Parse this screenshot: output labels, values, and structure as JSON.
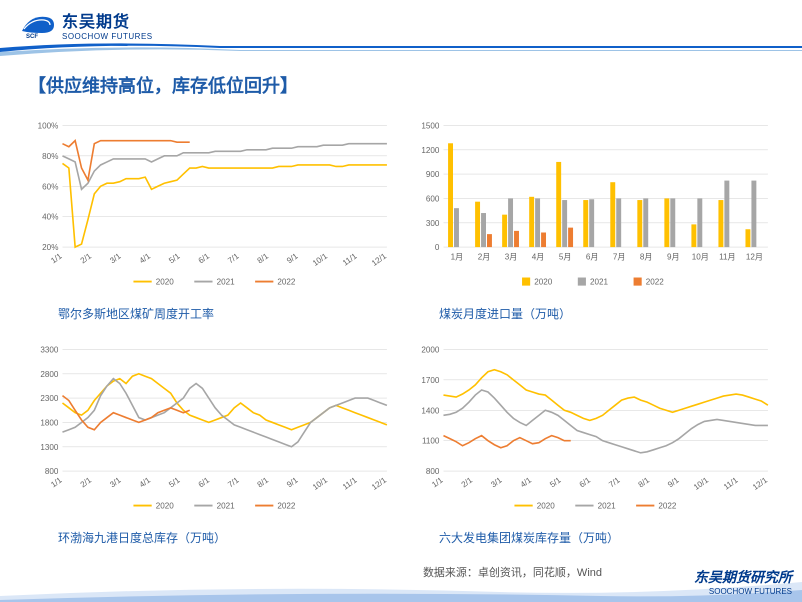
{
  "branding": {
    "company_cn": "东吴期货",
    "company_en": "SOOCHOW FUTURES",
    "research_cn": "东吴期货研究所",
    "research_en": "SOOCHOW FUTURES",
    "logo_primary": "#1060c9",
    "logo_accent": "#003a8c"
  },
  "title": "【供应维持高位，库存低位回升】",
  "source_label": "数据来源：卓创资讯，同花顺，Wind",
  "months_x": [
    "1/1",
    "2/1",
    "3/1",
    "4/1",
    "5/1",
    "6/1",
    "7/1",
    "8/1",
    "9/1",
    "10/1",
    "11/1",
    "12/1"
  ],
  "months_cn": [
    "1月",
    "2月",
    "3月",
    "4月",
    "5月",
    "6月",
    "7月",
    "8月",
    "9月",
    "10月",
    "11月",
    "12月"
  ],
  "legend_years": [
    "2020",
    "2021",
    "2022"
  ],
  "colors": {
    "s2020": "#ffc000",
    "s2021": "#a6a6a6",
    "s2022": "#ed7d31",
    "grid": "#d9d9d9",
    "axis_text": "#666666"
  },
  "chart1": {
    "caption": "鄂尔多斯地区煤矿周度开工率",
    "type": "line",
    "ylim": [
      20,
      100
    ],
    "ystep": 20,
    "yformat": "percent",
    "series": {
      "2020": [
        75,
        72,
        20,
        22,
        38,
        55,
        60,
        62,
        62,
        63,
        65,
        65,
        65,
        66,
        58,
        60,
        62,
        63,
        64,
        68,
        72,
        72,
        73,
        72,
        72,
        72,
        72,
        72,
        72,
        72,
        72,
        72,
        72,
        72,
        73,
        73,
        73,
        74,
        74,
        74,
        74,
        74,
        74,
        73,
        73,
        74,
        74,
        74,
        74,
        74,
        74,
        74
      ],
      "2021": [
        80,
        78,
        76,
        58,
        62,
        70,
        74,
        76,
        78,
        78,
        78,
        78,
        78,
        78,
        76,
        78,
        80,
        80,
        80,
        82,
        82,
        82,
        82,
        82,
        83,
        83,
        83,
        83,
        83,
        84,
        84,
        84,
        84,
        85,
        85,
        85,
        85,
        86,
        86,
        86,
        86,
        87,
        87,
        87,
        87,
        88,
        88,
        88,
        88,
        88,
        88,
        88
      ],
      "2022": [
        88,
        86,
        90,
        72,
        64,
        88,
        90,
        90,
        90,
        90,
        90,
        90,
        90,
        90,
        90,
        90,
        90,
        90,
        89,
        89,
        89
      ]
    }
  },
  "chart2": {
    "caption": "煤炭月度进口量（万吨）",
    "type": "bar",
    "ylim": [
      0,
      1500
    ],
    "ystep": 300,
    "series": {
      "2020": [
        1280,
        560,
        400,
        620,
        1050,
        580,
        800,
        580,
        600,
        280,
        580,
        220
      ],
      "2021": [
        480,
        420,
        600,
        600,
        580,
        590,
        600,
        600,
        600,
        600,
        820,
        820
      ],
      "2022": [
        null,
        160,
        200,
        180,
        240,
        null,
        null,
        null,
        null,
        null,
        null,
        null
      ]
    }
  },
  "chart3": {
    "caption": "环渤海九港日度总库存（万吨）",
    "type": "line",
    "ylim": [
      800,
      3300
    ],
    "ystep": 500,
    "series": {
      "2020": [
        2200,
        2100,
        2000,
        1950,
        2050,
        2250,
        2400,
        2550,
        2650,
        2700,
        2600,
        2750,
        2800,
        2750,
        2700,
        2600,
        2500,
        2400,
        2200,
        2050,
        1950,
        1900,
        1850,
        1800,
        1850,
        1900,
        1950,
        2100,
        2200,
        2100,
        2000,
        1950,
        1850,
        1800,
        1750,
        1700,
        1650,
        1700,
        1750,
        1800,
        1900,
        2000,
        2100,
        2150,
        2100,
        2050,
        2000,
        1950,
        1900,
        1850,
        1800,
        1750
      ],
      "2021": [
        1600,
        1650,
        1700,
        1800,
        1900,
        2050,
        2350,
        2550,
        2700,
        2600,
        2400,
        2150,
        1900,
        1850,
        1900,
        1950,
        2000,
        2100,
        2200,
        2300,
        2500,
        2600,
        2500,
        2300,
        2100,
        1950,
        1850,
        1750,
        1700,
        1650,
        1600,
        1550,
        1500,
        1450,
        1400,
        1350,
        1300,
        1400,
        1600,
        1800,
        1900,
        2000,
        2100,
        2150,
        2200,
        2250,
        2300,
        2300,
        2300,
        2250,
        2200,
        2150
      ],
      "2022": [
        2350,
        2250,
        2050,
        1850,
        1700,
        1650,
        1800,
        1900,
        2000,
        1950,
        1900,
        1850,
        1800,
        1850,
        1900,
        2000,
        2050,
        2100,
        2050,
        2000,
        2050
      ]
    }
  },
  "chart4": {
    "caption": "六大发电集团煤炭库存量（万吨）",
    "type": "line",
    "ylim": [
      800,
      2000
    ],
    "ystep": 300,
    "series": {
      "2020": [
        1550,
        1540,
        1530,
        1560,
        1600,
        1650,
        1720,
        1780,
        1800,
        1780,
        1750,
        1700,
        1650,
        1600,
        1580,
        1560,
        1550,
        1500,
        1450,
        1400,
        1380,
        1350,
        1320,
        1300,
        1320,
        1350,
        1400,
        1450,
        1500,
        1520,
        1530,
        1500,
        1480,
        1450,
        1420,
        1400,
        1380,
        1400,
        1420,
        1440,
        1460,
        1480,
        1500,
        1520,
        1540,
        1550,
        1560,
        1550,
        1530,
        1510,
        1490,
        1450
      ],
      "2021": [
        1350,
        1360,
        1380,
        1420,
        1480,
        1550,
        1600,
        1580,
        1520,
        1450,
        1380,
        1320,
        1280,
        1250,
        1300,
        1350,
        1400,
        1380,
        1350,
        1300,
        1250,
        1200,
        1180,
        1160,
        1140,
        1100,
        1080,
        1060,
        1040,
        1020,
        1000,
        980,
        990,
        1010,
        1030,
        1050,
        1080,
        1120,
        1170,
        1220,
        1260,
        1290,
        1300,
        1310,
        1300,
        1290,
        1280,
        1270,
        1260,
        1250,
        1250,
        1250
      ],
      "2022": [
        1150,
        1120,
        1090,
        1050,
        1080,
        1120,
        1150,
        1100,
        1060,
        1030,
        1050,
        1100,
        1130,
        1100,
        1070,
        1080,
        1120,
        1150,
        1130,
        1100,
        1100
      ]
    }
  }
}
